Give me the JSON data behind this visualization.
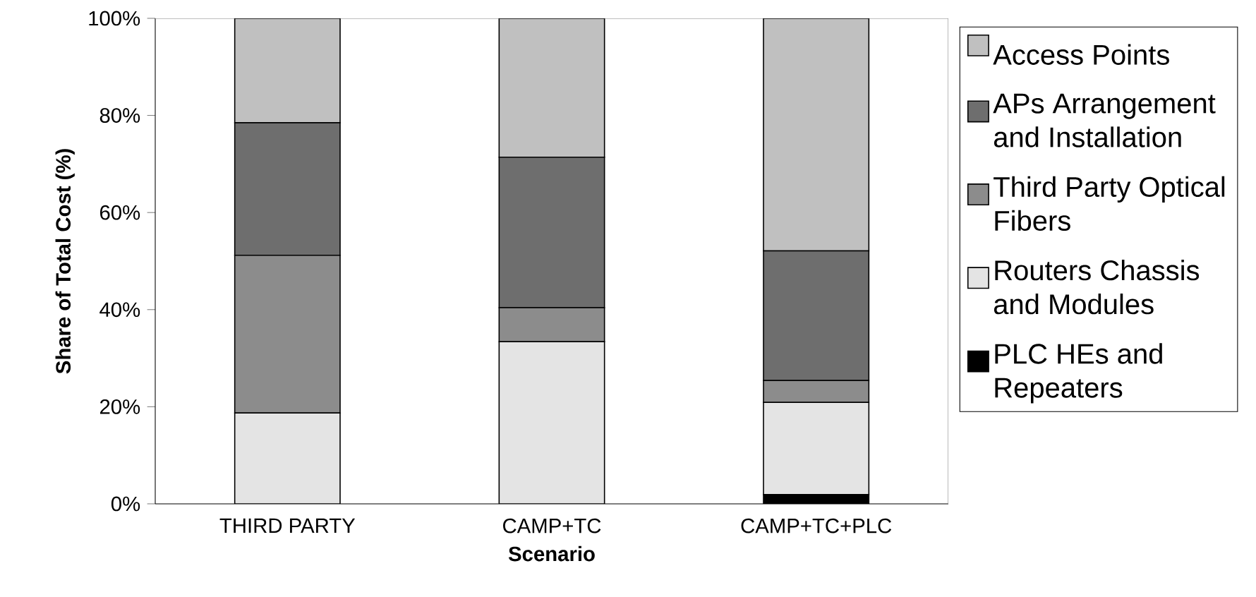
{
  "chart_data": {
    "type": "bar",
    "stacked": true,
    "xlabel": "Scenario",
    "ylabel": "Share of Total Cost (%)",
    "categories": [
      "THIRD PARTY",
      "CAMP+TC",
      "CAMP+TC+PLC"
    ],
    "series": [
      {
        "name": "PLC HEs and Repeaters",
        "color": "#000000",
        "values": [
          0,
          0,
          1.9
        ]
      },
      {
        "name": "Routers Chassis and Modules",
        "color": "#e4e4e4",
        "values": [
          18.7,
          33.4,
          19.0
        ]
      },
      {
        "name": "Third Party Optical Fibers",
        "color": "#8c8c8c",
        "values": [
          32.5,
          7.0,
          4.5
        ]
      },
      {
        "name": "APs Arrangement and Installation",
        "color": "#6e6e6e",
        "values": [
          27.3,
          31.0,
          26.7
        ]
      },
      {
        "name": "Access Points",
        "color": "#c0c0c0",
        "values": [
          21.5,
          28.6,
          47.9
        ]
      }
    ],
    "ylim": [
      0,
      100
    ],
    "yticks": [
      {
        "value": 0,
        "label": "0%"
      },
      {
        "value": 20,
        "label": "20%"
      },
      {
        "value": 40,
        "label": "40%"
      },
      {
        "value": 60,
        "label": "60%"
      },
      {
        "value": 80,
        "label": "80%"
      },
      {
        "value": 100,
        "label": "100%"
      }
    ],
    "grid": false,
    "legend": "right"
  }
}
